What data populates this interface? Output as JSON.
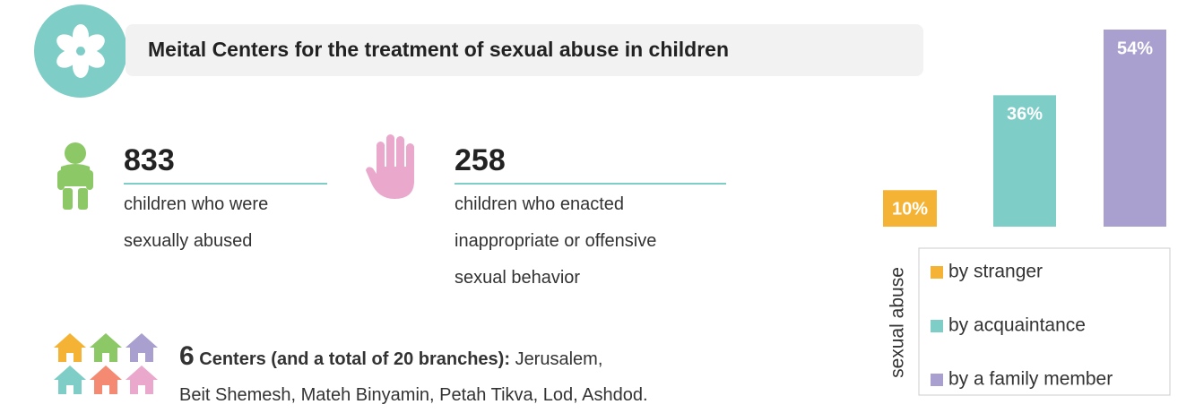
{
  "header": {
    "title": "Meital Centers for the treatment of sexual abuse in children"
  },
  "stats": [
    {
      "value": 833,
      "lines": [
        "children who were",
        "sexually abused"
      ]
    },
    {
      "value": 258,
      "lines": [
        "children who enacted",
        "inappropriate or offensive",
        "sexual behavior"
      ]
    }
  ],
  "centers": {
    "count": 6,
    "heading": "Centers (and a total of 20 branches):",
    "line1": "Jerusalem,",
    "line2": "Beit Shemesh, Mateh Binyamin, Petah Tikva, Lod, Ashdod."
  },
  "chart_data": {
    "type": "bar",
    "legend_title": "sexual abuse",
    "ylim": [
      0,
      54
    ],
    "series": [
      {
        "name": "by stranger",
        "color": "#f5b335",
        "values": [
          10
        ],
        "value_labels": [
          "10%"
        ]
      },
      {
        "name": "by acquaintance",
        "color": "#7ecdc6",
        "values": [
          36
        ],
        "value_labels": [
          "36%"
        ]
      },
      {
        "name": "by a family member",
        "color": "#a9a0cf",
        "values": [
          54
        ],
        "value_labels": [
          "54%"
        ]
      }
    ]
  }
}
